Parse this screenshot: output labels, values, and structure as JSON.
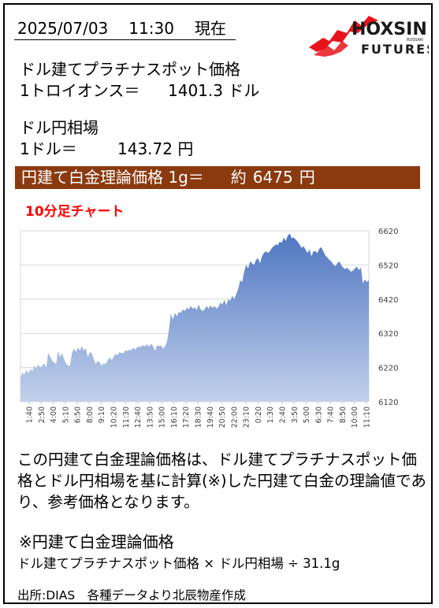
{
  "header": {
    "date": "2025/07/03",
    "time": "11:30",
    "status": "現在"
  },
  "logo": {
    "name": "HOXSIN",
    "sub": "FUTURES",
    "tag": "RUSSAN",
    "accent": "#e8141c",
    "text_color": "#1a1a1a"
  },
  "platinum": {
    "title": "ドル建てプラチナスポット価格",
    "unit_label": "1トロイオンス＝",
    "value": "1401.3",
    "unit": "ドル"
  },
  "fx": {
    "title": "ドル円相場",
    "unit_label": "1ドル＝",
    "value": "143.72",
    "unit": "円"
  },
  "banner": {
    "label": "円建て白金理論価格 1g＝",
    "approx": "約",
    "value": "6475",
    "unit": "円",
    "bg": "#8b3a10"
  },
  "chart_title": "10分足チャート",
  "chart_data": {
    "type": "area",
    "title": "10分足チャート",
    "ylim": [
      6120,
      6620
    ],
    "yticks": [
      6120,
      6220,
      6320,
      6420,
      6520,
      6620
    ],
    "grid": true,
    "xticklabels": [
      "1:40",
      "2:50",
      "4:00",
      "5:10",
      "6:50",
      "8:00",
      "9:10",
      "10:20",
      "11:30",
      "12:40",
      "13:50",
      "15:00",
      "16:10",
      "17:20",
      "18:30",
      "19:40",
      "20:50",
      "22:00",
      "23:10",
      "0:20",
      "1:30",
      "2:40",
      "3:50",
      "5:00",
      "6:30",
      "7:40",
      "8:50",
      "10:00",
      "11:10"
    ],
    "y": [
      6190,
      6205,
      6200,
      6212,
      6203,
      6215,
      6210,
      6225,
      6218,
      6228,
      6220,
      6225,
      6232,
      6220,
      6262,
      6252,
      6240,
      6235,
      6230,
      6268,
      6250,
      6262,
      6245,
      6232,
      6225,
      6225,
      6262,
      6275,
      6265,
      6278,
      6270,
      6282,
      6270,
      6276,
      6250,
      6265,
      6262,
      6245,
      6230,
      6240,
      6235,
      6225,
      6232,
      6230,
      6240,
      6250,
      6242,
      6250,
      6260,
      6255,
      6265,
      6262,
      6262,
      6270,
      6268,
      6272,
      6270,
      6278,
      6272,
      6280,
      6280,
      6282,
      6285,
      6282,
      6288,
      6280,
      6290,
      6282,
      6268,
      6285,
      6282,
      6285,
      6275,
      6282,
      6295,
      6330,
      6378,
      6360,
      6380,
      6370,
      6382,
      6380,
      6390,
      6385,
      6395,
      6390,
      6400,
      6392,
      6396,
      6388,
      6405,
      6390,
      6385,
      6390,
      6400,
      6392,
      6402,
      6394,
      6400,
      6392,
      6398,
      6410,
      6404,
      6418,
      6402,
      6420,
      6415,
      6430,
      6420,
      6435,
      6450,
      6475,
      6470,
      6500,
      6520,
      6510,
      6530,
      6525,
      6520,
      6535,
      6540,
      6525,
      6545,
      6555,
      6560,
      6555,
      6560,
      6570,
      6575,
      6580,
      6578,
      6588,
      6585,
      6600,
      6590,
      6605,
      6612,
      6598,
      6600,
      6595,
      6588,
      6580,
      6570,
      6575,
      6565,
      6555,
      6565,
      6545,
      6560,
      6560,
      6555,
      6568,
      6572,
      6560,
      6548,
      6542,
      6535,
      6530,
      6522,
      6516,
      6524,
      6530,
      6520,
      6512,
      6508,
      6512,
      6506,
      6500,
      6504,
      6510,
      6515,
      6505,
      6512,
      6465,
      6478,
      6470,
      6475
    ],
    "fill_top": "#4f76c1",
    "fill_bottom": "#c2d1ec"
  },
  "description": "この円建て白金理論価格は、ドル建てプラチナスポット価格とドル円相場を基に計算(※)した円建て白金の理論値であり、参考価格となります。",
  "note": {
    "title": "※円建て白金理論価格",
    "formula": "ドル建てプラチナスポット価格 × ドル円相場 ÷ 31.1g"
  },
  "source": "出所:DIAS　各種データより北辰物産作成"
}
